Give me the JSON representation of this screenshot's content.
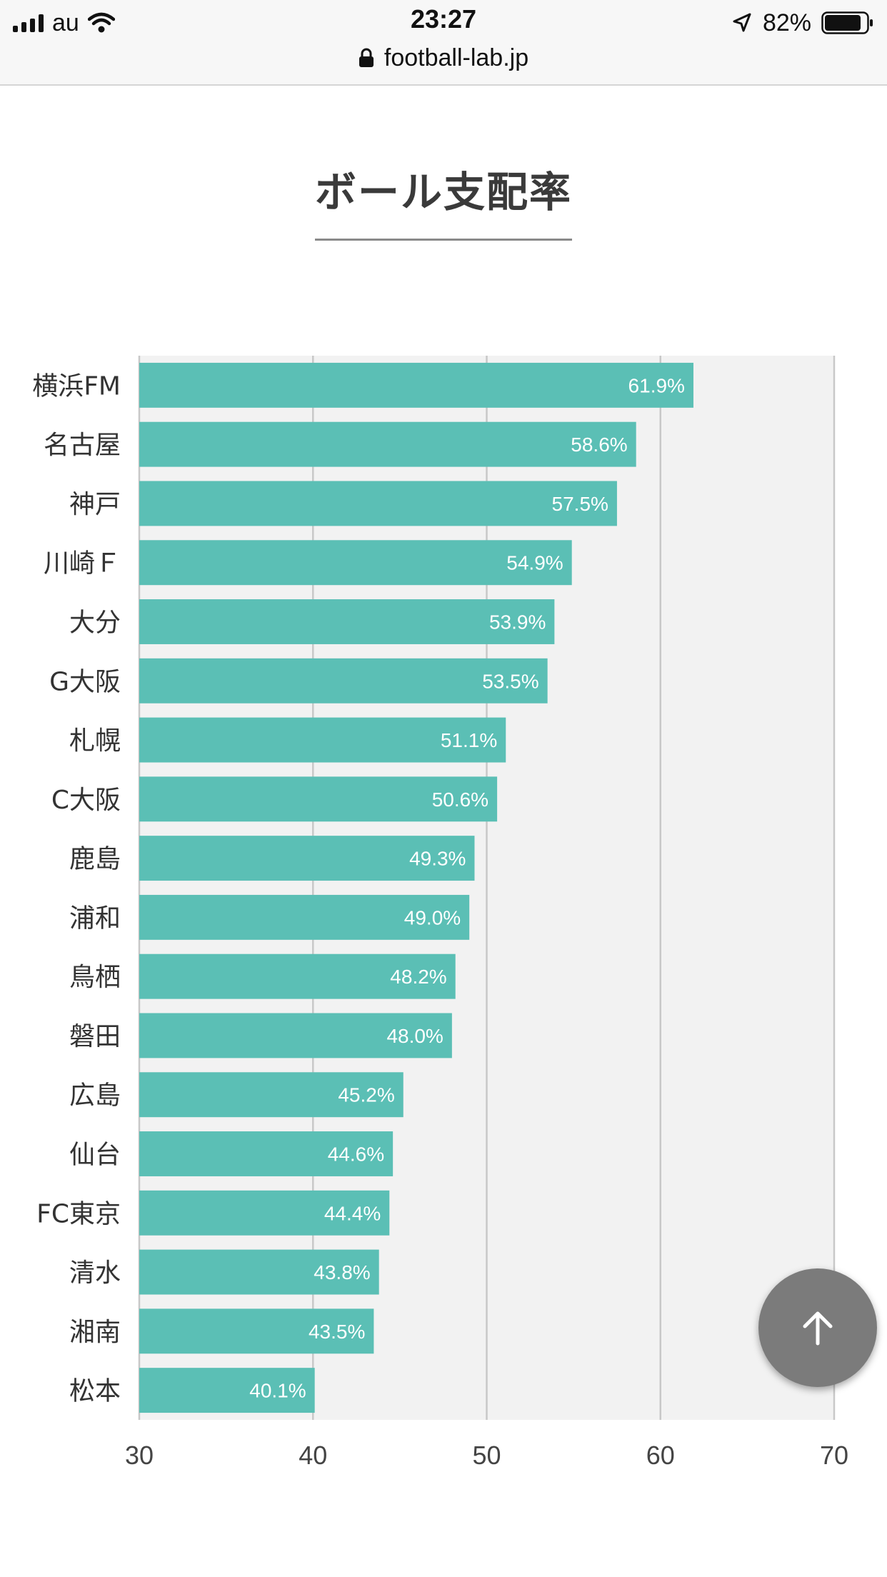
{
  "status_bar": {
    "carrier": "au",
    "time": "23:27",
    "battery": "82%"
  },
  "browser": {
    "url": "football-lab.jp"
  },
  "page": {
    "title": "ボール支配率"
  },
  "colors": {
    "bar": "#5bbfb5",
    "plot_background": "#f2f2f2",
    "gridline": "#c8c8c8",
    "scroll_button": "#7b7b7b"
  },
  "chart_data": {
    "type": "bar",
    "orientation": "horizontal",
    "title": "",
    "xlabel": "",
    "ylabel": "",
    "xlim": [
      30,
      70
    ],
    "x_ticks": [
      30,
      40,
      50,
      60,
      70
    ],
    "grid": true,
    "categories": [
      "横浜FM",
      "名古屋",
      "神戸",
      "川崎Ｆ",
      "大分",
      "G大阪",
      "札幌",
      "C大阪",
      "鹿島",
      "浦和",
      "鳥栖",
      "磐田",
      "広島",
      "仙台",
      "FC東京",
      "清水",
      "湘南",
      "松本"
    ],
    "values": [
      61.9,
      58.6,
      57.5,
      54.9,
      53.9,
      53.5,
      51.1,
      50.6,
      49.3,
      49.0,
      48.2,
      48.0,
      45.2,
      44.6,
      44.4,
      43.8,
      43.5,
      40.1
    ],
    "value_labels": [
      "61.9%",
      "58.6%",
      "57.5%",
      "54.9%",
      "53.9%",
      "53.5%",
      "51.1%",
      "50.6%",
      "49.3%",
      "49.0%",
      "48.2%",
      "48.0%",
      "45.2%",
      "44.6%",
      "44.4%",
      "43.8%",
      "43.5%",
      "40.1%"
    ]
  }
}
